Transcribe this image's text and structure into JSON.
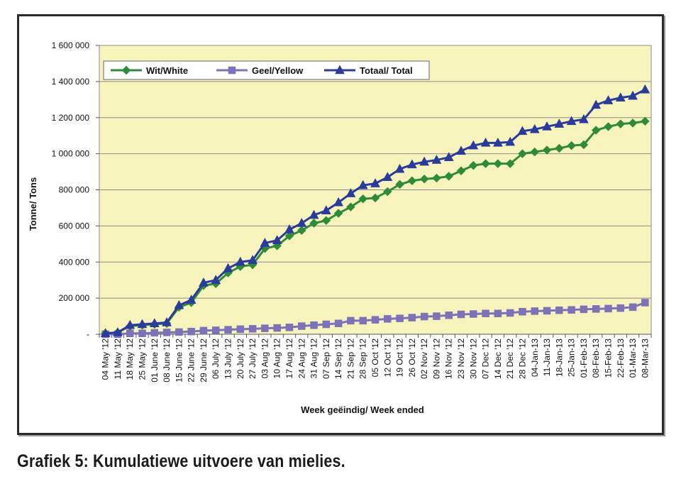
{
  "caption": "Grafiek 5: Kumulatiewe uitvoere van mielies.",
  "chart_data": {
    "type": "line",
    "title": "",
    "xlabel": "Week geëindig/ Week ended",
    "ylabel": "Tonne/ Tons",
    "ylim": [
      0,
      1600000
    ],
    "yticks": [
      0,
      200000,
      400000,
      600000,
      800000,
      1000000,
      1200000,
      1400000,
      1600000
    ],
    "ytick_labels": [
      "-",
      "200 000",
      "400 000",
      "600 000",
      "800 000",
      "1 000 000",
      "1 200 000",
      "1 400 000",
      "1 600 000"
    ],
    "grid": true,
    "legend_position": "top-left",
    "plot_background": "#f7f3bc",
    "categories": [
      "04 May '12",
      "11 May '12",
      "18 May '12",
      "25 May '12",
      "01 June '12",
      "08 June '12",
      "15 June '12",
      "22 June '12",
      "29 June '12",
      "06 July '12",
      "13 July '12",
      "20 July '12",
      "27 July '12",
      "03 Aug '12",
      "10 Aug '12",
      "17 Aug '12",
      "24 Aug '12",
      "31 Aug '12",
      "07 Sep '12",
      "14 Sep '12",
      "21 Sep '12",
      "28 Sep '12",
      "05 Oct '12",
      "12 Oct '12",
      "19 Oct '12",
      "26 Oct '12",
      "02 Nov '12",
      "09 Nov '12",
      "16 Nov '12",
      "23 Nov '12",
      "30 Nov '12",
      "07 Dec '12",
      "14 Dec '12",
      "21 Dec '12",
      "28 Dec '12",
      "04-Jan-13",
      "11-Jan-13",
      "18-Jan-13",
      "25-Jan-13",
      "01-Feb-13",
      "08-Feb-13",
      "15-Feb-13",
      "22-Feb-13",
      "01-Mar-13",
      "08-Mar-13"
    ],
    "series": [
      {
        "name": "Wit/White",
        "color": "#2e8b3a",
        "marker": "diamond",
        "values": [
          5000,
          10000,
          45000,
          50000,
          55000,
          60000,
          150000,
          175000,
          270000,
          280000,
          340000,
          375000,
          385000,
          475000,
          490000,
          545000,
          575000,
          615000,
          630000,
          670000,
          705000,
          750000,
          755000,
          790000,
          830000,
          850000,
          860000,
          865000,
          875000,
          905000,
          935000,
          945000,
          945000,
          945000,
          1000000,
          1010000,
          1020000,
          1030000,
          1045000,
          1050000,
          1130000,
          1150000,
          1165000,
          1170000,
          1180000
        ]
      },
      {
        "name": "Geel/Yellow",
        "color": "#7b72b8",
        "marker": "square",
        "values": [
          0,
          0,
          5000,
          5000,
          8000,
          10000,
          12000,
          15000,
          20000,
          22000,
          25000,
          28000,
          30000,
          33000,
          35000,
          38000,
          45000,
          50000,
          55000,
          60000,
          75000,
          75000,
          80000,
          85000,
          88000,
          92000,
          98000,
          100000,
          105000,
          110000,
          112000,
          115000,
          115000,
          118000,
          125000,
          128000,
          130000,
          133000,
          135000,
          138000,
          140000,
          142000,
          145000,
          150000,
          175000
        ]
      },
      {
        "name": "Totaal/ Total",
        "color": "#2b3b9c",
        "marker": "triangle",
        "values": [
          5000,
          10000,
          50000,
          55000,
          60000,
          65000,
          160000,
          190000,
          285000,
          300000,
          365000,
          400000,
          410000,
          505000,
          520000,
          580000,
          615000,
          660000,
          685000,
          730000,
          780000,
          825000,
          835000,
          870000,
          915000,
          940000,
          955000,
          965000,
          980000,
          1015000,
          1045000,
          1060000,
          1060000,
          1065000,
          1125000,
          1135000,
          1150000,
          1165000,
          1180000,
          1190000,
          1270000,
          1295000,
          1310000,
          1320000,
          1355000
        ]
      }
    ]
  }
}
